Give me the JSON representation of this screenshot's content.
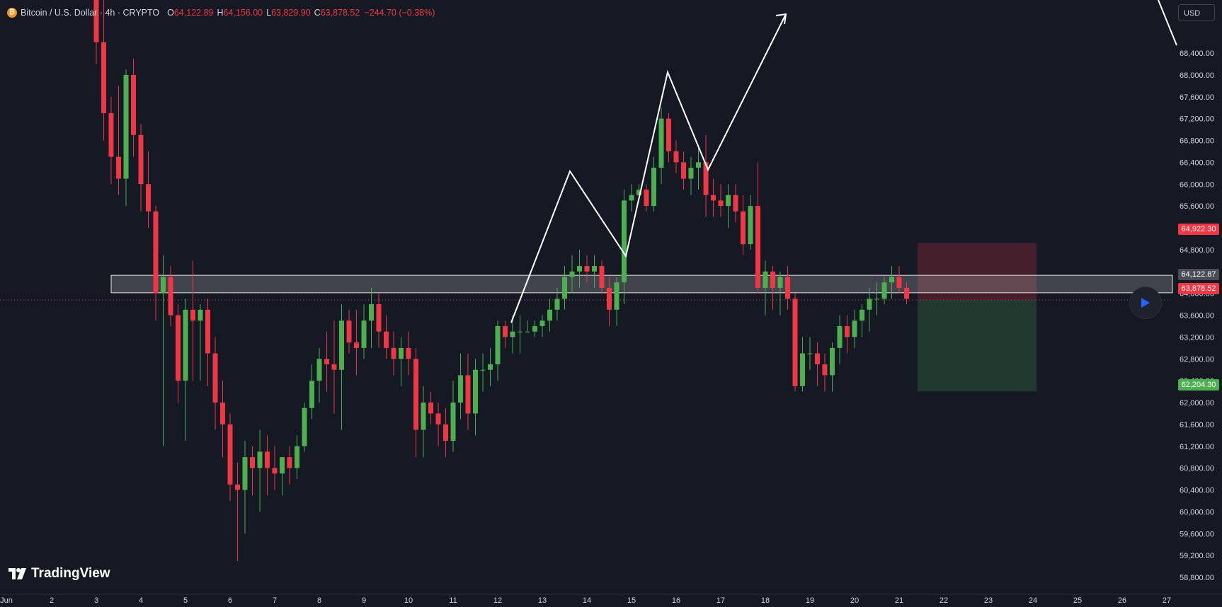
{
  "header": {
    "symbol": "Bitcoin / U.S. Dollar · 4h · CRYPTO",
    "o_label": "O",
    "o_value": "64,122.89",
    "h_label": "H",
    "h_value": "64,156.00",
    "l_label": "L",
    "l_value": "63,829.90",
    "c_label": "C",
    "c_value": "63,878.52",
    "change": "−244.70 (−0.38%)"
  },
  "currency": "USD",
  "branding": "TradingView",
  "colors": {
    "up": "#4caf50",
    "down": "#f23645",
    "background": "#151924",
    "text": "#d1d4dc"
  },
  "price_axis": {
    "ticks": [
      "68,400.00",
      "68,000.00",
      "67,600.00",
      "67,200.00",
      "66,800.00",
      "66,400.00",
      "66,000.00",
      "65,600.00",
      "65,200.00",
      "64,800.00",
      "64,400.00",
      "64,000.00",
      "63,600.00",
      "63,200.00",
      "62,800.00",
      "62,400.00",
      "62,000.00",
      "61,600.00",
      "61,200.00",
      "60,800.00",
      "60,400.00",
      "60,000.00",
      "59,600.00",
      "59,200.00",
      "58,800.00"
    ],
    "labels": {
      "stop": "64,922.30",
      "open_price": "64,122.87",
      "current": "63,878.52",
      "target": "62,204.30"
    }
  },
  "chart_data": {
    "type": "candlestick",
    "symbol": "Bitcoin / U.S. Dollar",
    "interval": "4h",
    "x_axis_labels": [
      "Jun",
      "2",
      "3",
      "4",
      "5",
      "6",
      "7",
      "8",
      "9",
      "10",
      "11",
      "12",
      "13",
      "14",
      "15",
      "16",
      "17",
      "18",
      "19",
      "20",
      "21",
      "22",
      "23",
      "24",
      "25",
      "26",
      "27"
    ],
    "y_range": [
      58600,
      68800
    ],
    "candles": [
      [
        3.0,
        70100,
        70200,
        68200,
        68600
      ],
      [
        3.167,
        68600,
        69800,
        66800,
        67300
      ],
      [
        3.333,
        67300,
        67600,
        66000,
        66500
      ],
      [
        3.5,
        66500,
        67800,
        65800,
        66100
      ],
      [
        3.667,
        66100,
        68100,
        65600,
        68000
      ],
      [
        3.833,
        68000,
        68300,
        66500,
        66900
      ],
      [
        4.0,
        66900,
        67100,
        65500,
        66000
      ],
      [
        4.167,
        66000,
        66600,
        65200,
        65500
      ],
      [
        4.333,
        65500,
        65600,
        63500,
        64000
      ],
      [
        4.5,
        64000,
        64700,
        61200,
        64300
      ],
      [
        4.667,
        64300,
        64500,
        63400,
        63600
      ],
      [
        4.833,
        63600,
        63800,
        62000,
        62400
      ],
      [
        5.0,
        62400,
        63900,
        61300,
        63700
      ],
      [
        5.167,
        63700,
        64600,
        62400,
        63500
      ],
      [
        5.333,
        63500,
        63800,
        62400,
        63700
      ],
      [
        5.5,
        63700,
        63900,
        62300,
        62900
      ],
      [
        5.667,
        62900,
        63200,
        61500,
        62000
      ],
      [
        5.833,
        62000,
        62400,
        61000,
        62000
      ],
      [
        5.833,
        62000,
        62400,
        61000,
        61600
      ],
      [
        6.0,
        61600,
        61800,
        60200,
        60500
      ],
      [
        6.167,
        60500,
        60900,
        59100,
        60400
      ],
      [
        6.333,
        60400,
        61300,
        59600,
        61000
      ],
      [
        6.5,
        61000,
        61200,
        60300,
        60800
      ],
      [
        6.667,
        60800,
        61500,
        60000,
        61100
      ],
      [
        6.833,
        61100,
        61400,
        60300,
        60800
      ],
      [
        7.0,
        60800,
        61200,
        60400,
        60700
      ],
      [
        7.167,
        60700,
        61000,
        60300,
        61000
      ],
      [
        7.333,
        61000,
        61200,
        60500,
        60800
      ],
      [
        7.5,
        60800,
        61400,
        60600,
        61200
      ],
      [
        7.667,
        61200,
        62000,
        61100,
        61900
      ],
      [
        7.833,
        61900,
        62700,
        61700,
        62400
      ],
      [
        8.0,
        62400,
        63000,
        62000,
        62800
      ],
      [
        8.167,
        62800,
        63300,
        62200,
        62700
      ],
      [
        8.333,
        62700,
        63500,
        61800,
        62600
      ],
      [
        8.5,
        62600,
        63800,
        61500,
        63500
      ],
      [
        8.667,
        63500,
        63700,
        62900,
        63100
      ],
      [
        8.833,
        63100,
        63700,
        62500,
        63000
      ],
      [
        9.0,
        63000,
        63800,
        62800,
        63500
      ],
      [
        9.167,
        63500,
        64100,
        63000,
        63800
      ],
      [
        9.333,
        63800,
        64000,
        63000,
        63300
      ],
      [
        9.5,
        63300,
        63600,
        62800,
        63000
      ],
      [
        9.667,
        63000,
        63300,
        62500,
        62800
      ],
      [
        9.833,
        62800,
        63200,
        62300,
        63000
      ],
      [
        10.0,
        63000,
        63300,
        62500,
        62800
      ],
      [
        10.167,
        62800,
        63000,
        61000,
        61500
      ],
      [
        10.333,
        61500,
        62300,
        61000,
        62000
      ],
      [
        10.5,
        62000,
        62200,
        61600,
        61800
      ],
      [
        10.667,
        61800,
        62000,
        61200,
        61600
      ],
      [
        10.833,
        61600,
        61900,
        61000,
        61300
      ],
      [
        11.0,
        61300,
        62400,
        61100,
        62000
      ],
      [
        11.167,
        62000,
        62900,
        61700,
        62500
      ],
      [
        11.333,
        62500,
        62900,
        61500,
        61800
      ],
      [
        11.5,
        61800,
        62800,
        61400,
        62600
      ],
      [
        11.667,
        62600,
        62900,
        62200,
        62600
      ],
      [
        11.833,
        62600,
        63000,
        62300,
        62700
      ],
      [
        12.0,
        62700,
        63500,
        62400,
        63400
      ],
      [
        12.167,
        63400,
        63500,
        63000,
        63200
      ],
      [
        12.333,
        63200,
        63600,
        62900,
        63300
      ],
      [
        12.5,
        63300,
        63600,
        62900,
        63300
      ],
      [
        12.667,
        63300,
        63500,
        63300,
        63300
      ],
      [
        12.833,
        63300,
        63500,
        63200,
        63400
      ],
      [
        13.0,
        63400,
        63600,
        63200,
        63500
      ],
      [
        13.167,
        63500,
        63900,
        63300,
        63700
      ],
      [
        13.333,
        63700,
        64100,
        63500,
        63900
      ],
      [
        13.5,
        63900,
        64500,
        63700,
        64300
      ],
      [
        13.667,
        64300,
        64700,
        64000,
        64400
      ],
      [
        13.833,
        64400,
        64800,
        64100,
        64500
      ],
      [
        14.0,
        64500,
        64700,
        64200,
        64400
      ],
      [
        14.167,
        64400,
        64700,
        64100,
        64500
      ],
      [
        14.333,
        64500,
        64600,
        64000,
        64100
      ],
      [
        14.5,
        64100,
        64300,
        63400,
        63700
      ],
      [
        14.667,
        63700,
        64300,
        63400,
        64200
      ],
      [
        14.833,
        64200,
        65900,
        63800,
        65700
      ],
      [
        15.0,
        65700,
        66000,
        65500,
        65800
      ],
      [
        15.167,
        65800,
        66000,
        65700,
        65900
      ],
      [
        15.333,
        65900,
        66000,
        65500,
        65600
      ],
      [
        15.5,
        65600,
        66500,
        65500,
        66300
      ],
      [
        15.667,
        66300,
        67400,
        66000,
        67200
      ],
      [
        15.833,
        67200,
        67300,
        66400,
        66600
      ],
      [
        16.0,
        66600,
        66800,
        66200,
        66400
      ],
      [
        16.167,
        66400,
        66600,
        65900,
        66100
      ],
      [
        16.333,
        66100,
        66500,
        65800,
        66300
      ],
      [
        16.5,
        66300,
        66700,
        65900,
        66400
      ],
      [
        16.667,
        66400,
        66900,
        65400,
        65800
      ],
      [
        16.833,
        65800,
        66100,
        65400,
        65700
      ],
      [
        17.0,
        65700,
        66000,
        65400,
        65600
      ],
      [
        17.167,
        65600,
        66000,
        65200,
        65800
      ],
      [
        17.333,
        65800,
        66000,
        65300,
        65500
      ],
      [
        17.5,
        65500,
        65800,
        64700,
        64900
      ],
      [
        17.667,
        64900,
        65800,
        64800,
        65600
      ],
      [
        17.833,
        65600,
        66400,
        64000,
        64100
      ],
      [
        18.0,
        64100,
        64600,
        63600,
        64400
      ],
      [
        18.167,
        64400,
        64500,
        63700,
        64100
      ],
      [
        18.333,
        64100,
        64400,
        63600,
        64300
      ],
      [
        18.5,
        64300,
        64500,
        63700,
        63900
      ],
      [
        18.667,
        63900,
        64000,
        62200,
        62300
      ],
      [
        18.833,
        62300,
        63200,
        62200,
        62900
      ],
      [
        19.0,
        62900,
        63200,
        62600,
        62900
      ],
      [
        19.167,
        62900,
        63100,
        62300,
        62700
      ],
      [
        19.333,
        62700,
        62900,
        62200,
        62500
      ],
      [
        19.5,
        62500,
        63100,
        62200,
        63000
      ],
      [
        19.667,
        63000,
        63600,
        62700,
        63400
      ],
      [
        19.833,
        63400,
        63600,
        62900,
        63200
      ],
      [
        20.0,
        63200,
        63700,
        63000,
        63500
      ],
      [
        20.167,
        63500,
        63800,
        63200,
        63700
      ],
      [
        20.333,
        63700,
        64100,
        63300,
        63900
      ],
      [
        20.5,
        63900,
        64200,
        63600,
        63900
      ],
      [
        20.667,
        63900,
        64300,
        63800,
        64200
      ],
      [
        20.833,
        64200,
        64500,
        63900,
        64300
      ],
      [
        21.0,
        64300,
        64500,
        64000,
        64100
      ],
      [
        21.167,
        64100,
        64200,
        63800,
        63900
      ]
    ]
  }
}
